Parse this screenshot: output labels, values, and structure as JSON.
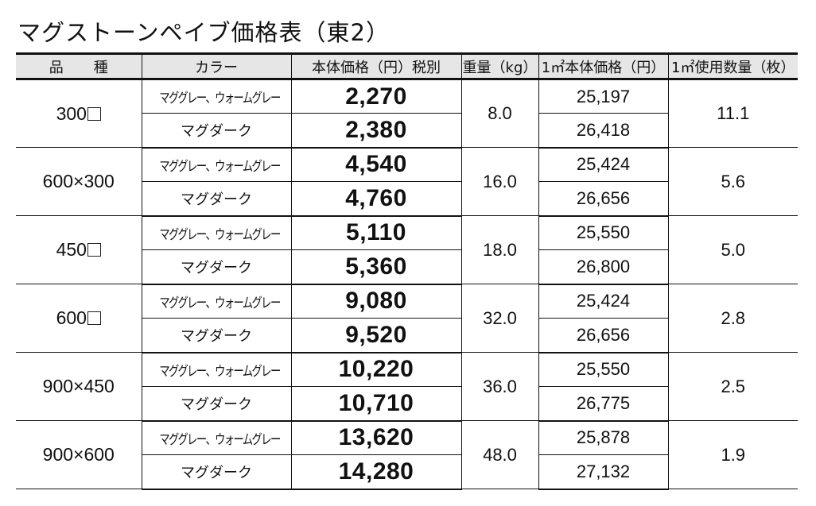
{
  "title": "マグストーンペイブ価格表（東2）",
  "table": {
    "headers": {
      "kind_a": "品",
      "kind_b": "種",
      "color": "カラー",
      "price": "本体価格（円）税別",
      "weight": "重量（kg）",
      "sqm_price": "1㎡本体価格（円）",
      "sqm_qty": "1㎡使用数量（枚）"
    },
    "colors": {
      "gray": "マググレー、ウォームグレー",
      "dark": "マグダーク"
    },
    "groups": [
      {
        "size": "300",
        "size_suffix_square": true,
        "weight": "8.0",
        "qty_per_sqm": "11.1",
        "rows": [
          {
            "color": "マググレー、ウォームグレー",
            "price": "2,270",
            "sqm_price": "25,197"
          },
          {
            "color": "マグダーク",
            "price": "2,380",
            "sqm_price": "26,418"
          }
        ]
      },
      {
        "size": "600×300",
        "size_suffix_square": false,
        "weight": "16.0",
        "qty_per_sqm": "5.6",
        "rows": [
          {
            "color": "マググレー、ウォームグレー",
            "price": "4,540",
            "sqm_price": "25,424"
          },
          {
            "color": "マグダーク",
            "price": "4,760",
            "sqm_price": "26,656"
          }
        ]
      },
      {
        "size": "450",
        "size_suffix_square": true,
        "weight": "18.0",
        "qty_per_sqm": "5.0",
        "rows": [
          {
            "color": "マググレー、ウォームグレー",
            "price": "5,110",
            "sqm_price": "25,550"
          },
          {
            "color": "マグダーク",
            "price": "5,360",
            "sqm_price": "26,800"
          }
        ]
      },
      {
        "size": "600",
        "size_suffix_square": true,
        "weight": "32.0",
        "qty_per_sqm": "2.8",
        "rows": [
          {
            "color": "マググレー、ウォームグレー",
            "price": "9,080",
            "sqm_price": "25,424"
          },
          {
            "color": "マグダーク",
            "price": "9,520",
            "sqm_price": "26,656"
          }
        ]
      },
      {
        "size": "900×450",
        "size_suffix_square": false,
        "weight": "36.0",
        "qty_per_sqm": "2.5",
        "rows": [
          {
            "color": "マググレー、ウォームグレー",
            "price": "10,220",
            "sqm_price": "25,550"
          },
          {
            "color": "マグダーク",
            "price": "10,710",
            "sqm_price": "26,775"
          }
        ]
      },
      {
        "size": "900×600",
        "size_suffix_square": false,
        "weight": "48.0",
        "qty_per_sqm": "1.9",
        "rows": [
          {
            "color": "マググレー、ウォームグレー",
            "price": "13,620",
            "sqm_price": "25,878"
          },
          {
            "color": "マグダーク",
            "price": "14,280",
            "sqm_price": "27,132"
          }
        ]
      }
    ]
  },
  "style": {
    "header_bg": "#e6e6e6",
    "border": "#111111",
    "text": "#111111"
  }
}
